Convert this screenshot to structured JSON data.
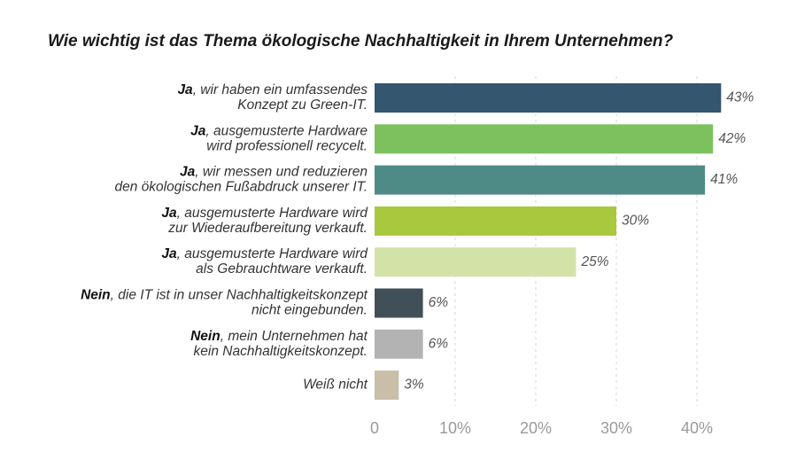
{
  "chart_data": {
    "type": "bar",
    "orientation": "horizontal",
    "title": "Wie wichtig ist das Thema ökologische Nachhaltigkeit in Ihrem Unternehmen?",
    "xlabel": "",
    "ylabel": "",
    "xlim": [
      0,
      45
    ],
    "grid": "vertical dashed",
    "categories": [
      {
        "lead": "Ja",
        "lines": [
          ", wir haben ein umfassendes",
          "Konzept zu Green-IT."
        ],
        "value": 43,
        "label": "43%",
        "color": "#34566f"
      },
      {
        "lead": "Ja",
        "lines": [
          ", ausgemusterte Hardware",
          "wird professionell recycelt."
        ],
        "value": 42,
        "label": "42%",
        "color": "#7dc15f"
      },
      {
        "lead": "Ja",
        "lines": [
          ", wir messen und reduzieren",
          "den ökologischen Fußabdruck unserer IT."
        ],
        "value": 41,
        "label": "41%",
        "color": "#4f8b86"
      },
      {
        "lead": "Ja",
        "lines": [
          ", ausgemusterte Hardware wird",
          "zur Wiederaufbereitung verkauft."
        ],
        "value": 30,
        "label": "30%",
        "color": "#a8c83e"
      },
      {
        "lead": "Ja",
        "lines": [
          ", ausgemusterte Hardware wird",
          "als Gebrauchtware verkauft."
        ],
        "value": 25,
        "label": "25%",
        "color": "#d3e3a8"
      },
      {
        "lead": "Nein",
        "lines": [
          ", die IT ist in unser Nachhaltigkeitskonzept",
          "nicht eingebunden."
        ],
        "value": 6,
        "label": "6%",
        "color": "#414f59"
      },
      {
        "lead": "Nein",
        "lines": [
          ", mein Unternehmen hat",
          "kein Nachhaltigkeitskonzept."
        ],
        "value": 6,
        "label": "6%",
        "color": "#b3b3b3"
      },
      {
        "lead": "",
        "lines": [
          "Weiß nicht"
        ],
        "value": 3,
        "label": "3%",
        "color": "#c9bea7"
      }
    ],
    "ticks": [
      {
        "value": 0,
        "label": "0"
      },
      {
        "value": 10,
        "label": "10%"
      },
      {
        "value": 20,
        "label": "20%"
      },
      {
        "value": 30,
        "label": "30%"
      },
      {
        "value": 40,
        "label": "40%"
      }
    ]
  }
}
